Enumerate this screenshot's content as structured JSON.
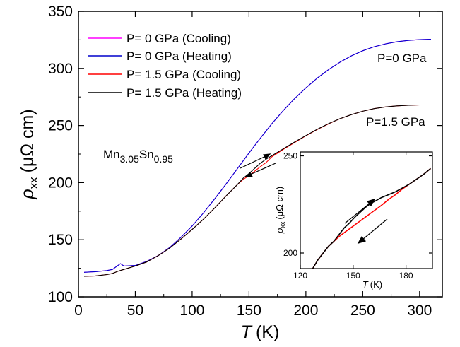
{
  "chart_data": [
    {
      "type": "line",
      "title": "",
      "xlabel": "T",
      "xunit": "(K)",
      "ylabel": "ρ",
      "ylabel_sub": "xx",
      "yunit": "(μΩ cm)",
      "xlim": [
        0,
        320
      ],
      "ylim": [
        100,
        350
      ],
      "xticks": [
        0,
        50,
        100,
        150,
        200,
        250,
        300
      ],
      "yticks": [
        100,
        150,
        200,
        250,
        300,
        350
      ],
      "grid": false,
      "legend_position": "top-left",
      "series": [
        {
          "name": "P= 0 GPa (Cooling)",
          "color": "#ff00ff",
          "points": [
            [
              5,
              121.5
            ],
            [
              15,
              122
            ],
            [
              25,
              123
            ],
            [
              30,
              124
            ],
            [
              34,
              127
            ],
            [
              37,
              129
            ],
            [
              40,
              127
            ],
            [
              50,
              127.5
            ],
            [
              60,
              131
            ],
            [
              70,
              136
            ],
            [
              80,
              143
            ],
            [
              90,
              152
            ],
            [
              100,
              162
            ],
            [
              110,
              173.5
            ],
            [
              120,
              186
            ],
            [
              130,
              199
            ],
            [
              140,
              212.5
            ],
            [
              150,
              226
            ],
            [
              160,
              239
            ],
            [
              170,
              251.5
            ],
            [
              180,
              263
            ],
            [
              190,
              273.5
            ],
            [
              200,
              283
            ],
            [
              210,
              291.5
            ],
            [
              220,
              299
            ],
            [
              230,
              305.5
            ],
            [
              240,
              311
            ],
            [
              250,
              315.5
            ],
            [
              260,
              319
            ],
            [
              270,
              321.5
            ],
            [
              280,
              323.3
            ],
            [
              290,
              324.5
            ],
            [
              300,
              325.2
            ],
            [
              310,
              325.5
            ]
          ]
        },
        {
          "name": "P= 0 GPa (Heating)",
          "color": "#0000cc",
          "points": [
            [
              5,
              121.5
            ],
            [
              15,
              122
            ],
            [
              25,
              123
            ],
            [
              30,
              124
            ],
            [
              34,
              127
            ],
            [
              37,
              129
            ],
            [
              40,
              127
            ],
            [
              50,
              127.5
            ],
            [
              60,
              131
            ],
            [
              70,
              136
            ],
            [
              80,
              143
            ],
            [
              90,
              152
            ],
            [
              100,
              162
            ],
            [
              110,
              173.5
            ],
            [
              120,
              186
            ],
            [
              130,
              199
            ],
            [
              140,
              212.5
            ],
            [
              150,
              226
            ],
            [
              160,
              239
            ],
            [
              170,
              251.5
            ],
            [
              180,
              263
            ],
            [
              190,
              273.5
            ],
            [
              200,
              283
            ],
            [
              210,
              291.5
            ],
            [
              220,
              299
            ],
            [
              230,
              305.5
            ],
            [
              240,
              311
            ],
            [
              250,
              315.5
            ],
            [
              260,
              319
            ],
            [
              270,
              321.5
            ],
            [
              280,
              323.3
            ],
            [
              290,
              324.5
            ],
            [
              300,
              325.2
            ],
            [
              310,
              325.5
            ]
          ]
        },
        {
          "name": "P= 1.5 GPa (Cooling)",
          "color": "#ff0000",
          "points": [
            [
              5,
              118
            ],
            [
              15,
              118.3
            ],
            [
              25,
              119.5
            ],
            [
              30,
              120.5
            ],
            [
              35,
              122.5
            ],
            [
              40,
              124
            ],
            [
              50,
              127
            ],
            [
              60,
              130.5
            ],
            [
              70,
              136
            ],
            [
              80,
              142.5
            ],
            [
              90,
              150.5
            ],
            [
              100,
              159
            ],
            [
              110,
              168
            ],
            [
              120,
              178
            ],
            [
              130,
              188.5
            ],
            [
              140,
              198.5
            ],
            [
              145,
              203
            ],
            [
              150,
              206
            ],
            [
              155,
              210
            ],
            [
              160,
              214
            ],
            [
              165,
              217.5
            ],
            [
              170,
              222.5
            ],
            [
              180,
              229
            ],
            [
              190,
              235
            ],
            [
              200,
              241
            ],
            [
              210,
              246.5
            ],
            [
              220,
              251.5
            ],
            [
              230,
              256
            ],
            [
              240,
              259.5
            ],
            [
              250,
              262.5
            ],
            [
              260,
              264.8
            ],
            [
              270,
              266.3
            ],
            [
              280,
              267.2
            ],
            [
              290,
              267.7
            ],
            [
              300,
              268
            ],
            [
              310,
              268
            ]
          ]
        },
        {
          "name": "P= 1.5 GPa (Heating)",
          "color": "#000000",
          "points": [
            [
              5,
              118
            ],
            [
              15,
              118.3
            ],
            [
              25,
              119.5
            ],
            [
              30,
              120.5
            ],
            [
              35,
              122.5
            ],
            [
              40,
              124
            ],
            [
              50,
              127
            ],
            [
              60,
              130.5
            ],
            [
              70,
              136
            ],
            [
              80,
              142.5
            ],
            [
              90,
              150.5
            ],
            [
              100,
              159
            ],
            [
              110,
              168
            ],
            [
              120,
              178
            ],
            [
              130,
              188.5
            ],
            [
              140,
              198.5
            ],
            [
              145,
              204
            ],
            [
              150,
              208
            ],
            [
              155,
              212.5
            ],
            [
              160,
              217
            ],
            [
              165,
              220.5
            ],
            [
              170,
              223.5
            ],
            [
              180,
              229.5
            ],
            [
              190,
              235.5
            ],
            [
              200,
              241.2
            ],
            [
              210,
              246.7
            ],
            [
              220,
              251.7
            ],
            [
              230,
              256
            ],
            [
              240,
              259.5
            ],
            [
              250,
              262.5
            ],
            [
              260,
              264.8
            ],
            [
              270,
              266.3
            ],
            [
              280,
              267.2
            ],
            [
              290,
              267.7
            ],
            [
              300,
              268
            ],
            [
              310,
              268
            ]
          ]
        }
      ],
      "annotations": [
        {
          "text": "P=0 GPa",
          "x": 265,
          "y": 310
        },
        {
          "text": "P=1.5 GPa",
          "x": 250,
          "y": 259
        },
        {
          "text_main": "Mn",
          "sub1": "3.05",
          "text_mid": "Sn",
          "sub2": "0.95",
          "x": 22,
          "y": 222
        }
      ]
    },
    {
      "type": "line",
      "role": "inset",
      "title": "",
      "xlabel": "T",
      "xunit": "(K)",
      "ylabel": "ρ",
      "ylabel_sub": "xx",
      "yunit": "(μΩ cm)",
      "xlim": [
        120,
        195
      ],
      "ylim": [
        192,
        252
      ],
      "xticks": [
        120,
        150,
        180
      ],
      "yticks": [
        200,
        250
      ],
      "series": [
        {
          "name": "",
          "color": "#ff0000",
          "points": [
            [
              127,
              192
            ],
            [
              130,
              196.5
            ],
            [
              133,
              200
            ],
            [
              136,
              203.5
            ],
            [
              139,
              206
            ],
            [
              142,
              208.5
            ],
            [
              145,
              210.5
            ],
            [
              148,
              212.5
            ],
            [
              151,
              214.5
            ],
            [
              154,
              216.5
            ],
            [
              157,
              218.5
            ],
            [
              160,
              220.5
            ],
            [
              163,
              222.5
            ],
            [
              166,
              224.5
            ],
            [
              170,
              227.5
            ],
            [
              174,
              230
            ],
            [
              178,
              233
            ],
            [
              182,
              235.5
            ],
            [
              186,
              238
            ],
            [
              190,
              240.5
            ],
            [
              194,
              243.5
            ]
          ]
        },
        {
          "name": "",
          "color": "#000000",
          "points": [
            [
              127,
              192
            ],
            [
              130,
              196.5
            ],
            [
              133,
              200
            ],
            [
              136,
              203.5
            ],
            [
              139,
              206
            ],
            [
              142,
              209.5
            ],
            [
              145,
              213
            ],
            [
              148,
              215.5
            ],
            [
              151,
              218.5
            ],
            [
              154,
              221
            ],
            [
              157,
              223.5
            ],
            [
              160,
              225.5
            ],
            [
              163,
              227
            ],
            [
              166,
              228.5
            ],
            [
              170,
              230
            ],
            [
              174,
              231.5
            ],
            [
              178,
              233.5
            ],
            [
              182,
              235.5
            ],
            [
              186,
              238
            ],
            [
              190,
              240.5
            ],
            [
              194,
              243.5
            ]
          ]
        }
      ]
    }
  ]
}
